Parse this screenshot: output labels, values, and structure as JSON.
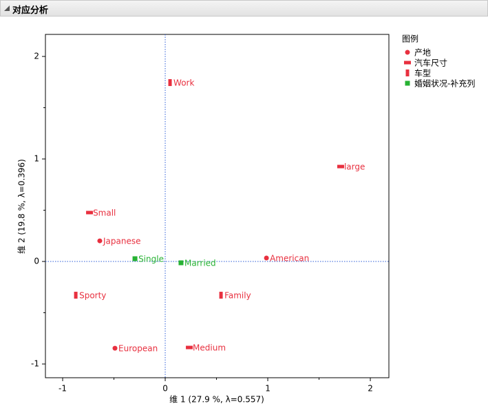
{
  "header": {
    "title": "对应分析"
  },
  "chart_data": {
    "type": "scatter",
    "xlabel": "维 1 (27.9 %, λ=0.557)",
    "ylabel": "维 2 (19.8 %, λ=0.396)",
    "legend_title": "图例",
    "legend": "right",
    "reference_lines": true,
    "xlim": [
      -1.168,
      2.181
    ],
    "ylim": [
      -1.134,
      2.215
    ],
    "xticks": [
      -1,
      0,
      1,
      2
    ],
    "yticks": [
      -1,
      0,
      1,
      2
    ],
    "xminorticks": [
      -0.5,
      0.5,
      1.5
    ],
    "yminorticks": [
      -0.5,
      0.5,
      1.5
    ],
    "series": [
      {
        "name": "产地",
        "color": "#e8303f",
        "marker": "circle",
        "labels": [
          "Japanese",
          "American",
          "European"
        ],
        "x": [
          -0.638,
          0.987,
          -0.49
        ],
        "y": [
          0.201,
          0.034,
          -0.846
        ]
      },
      {
        "name": "汽车尺寸",
        "color": "#e8303f",
        "marker": "hbar",
        "labels": [
          "Small",
          "large",
          "Medium"
        ],
        "x": [
          -0.738,
          1.711,
          0.235
        ],
        "y": [
          0.477,
          0.926,
          -0.839
        ]
      },
      {
        "name": "车型",
        "color": "#e8303f",
        "marker": "vbar",
        "labels": [
          "Work",
          "Sporty",
          "Family"
        ],
        "x": [
          0.047,
          -0.872,
          0.544
        ],
        "y": [
          1.745,
          -0.329,
          -0.329
        ]
      },
      {
        "name": "婚姻状况-补充列",
        "color": "#27b233",
        "marker": "square",
        "labels": [
          "Single",
          "Married"
        ],
        "x": [
          -0.295,
          0.154
        ],
        "y": [
          0.027,
          -0.013
        ]
      }
    ]
  }
}
